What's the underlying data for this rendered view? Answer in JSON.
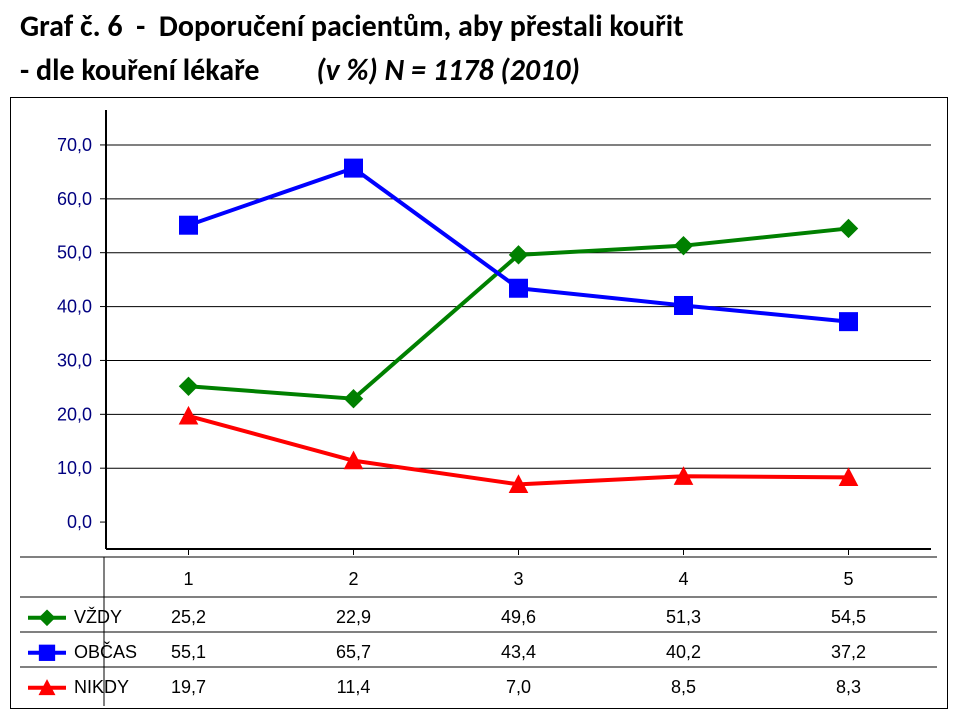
{
  "title_line1": "Graf č. 6  -  Doporučení pacientům, aby přestali kouřit",
  "title_sub_left": "- dle kouření lékaře",
  "title_sub_right": "(v %) N = 1178 (2010)",
  "chart": {
    "type": "line",
    "categories": [
      "1",
      "2",
      "3",
      "4",
      "5"
    ],
    "ylim": [
      -5,
      75
    ],
    "ytick_step": 10,
    "ytick_min": 0,
    "ytick_max": 70,
    "ytick_labels": [
      "0,0",
      "10,0",
      "20,0",
      "30,0",
      "40,0",
      "50,0",
      "60,0",
      "70,0"
    ],
    "grid_color": "#000000",
    "grid_width": 1,
    "axis_color": "#000000",
    "axis_width": 2,
    "line_width": 4,
    "marker_size": 9,
    "label_color": "#000080",
    "series": [
      {
        "name": "VŽDY",
        "color": "#008000",
        "marker": "diamond",
        "values": [
          25.2,
          22.9,
          49.6,
          51.3,
          54.5
        ],
        "labels": [
          "25,2",
          "22,9",
          "49,6",
          "51,3",
          "54,5"
        ]
      },
      {
        "name": "OBČAS",
        "color": "#0000ff",
        "marker": "square",
        "values": [
          55.1,
          65.7,
          43.4,
          40.2,
          37.2
        ],
        "labels": [
          "55,1",
          "65,7",
          "43,4",
          "40,2",
          "37,2"
        ]
      },
      {
        "name": "NIKDY",
        "color": "#ff0000",
        "marker": "triangle",
        "values": [
          19.7,
          11.4,
          7.0,
          8.5,
          8.3
        ],
        "labels": [
          "19,7",
          "11,4",
          "7,0",
          "8,5",
          "8,3"
        ]
      }
    ]
  }
}
